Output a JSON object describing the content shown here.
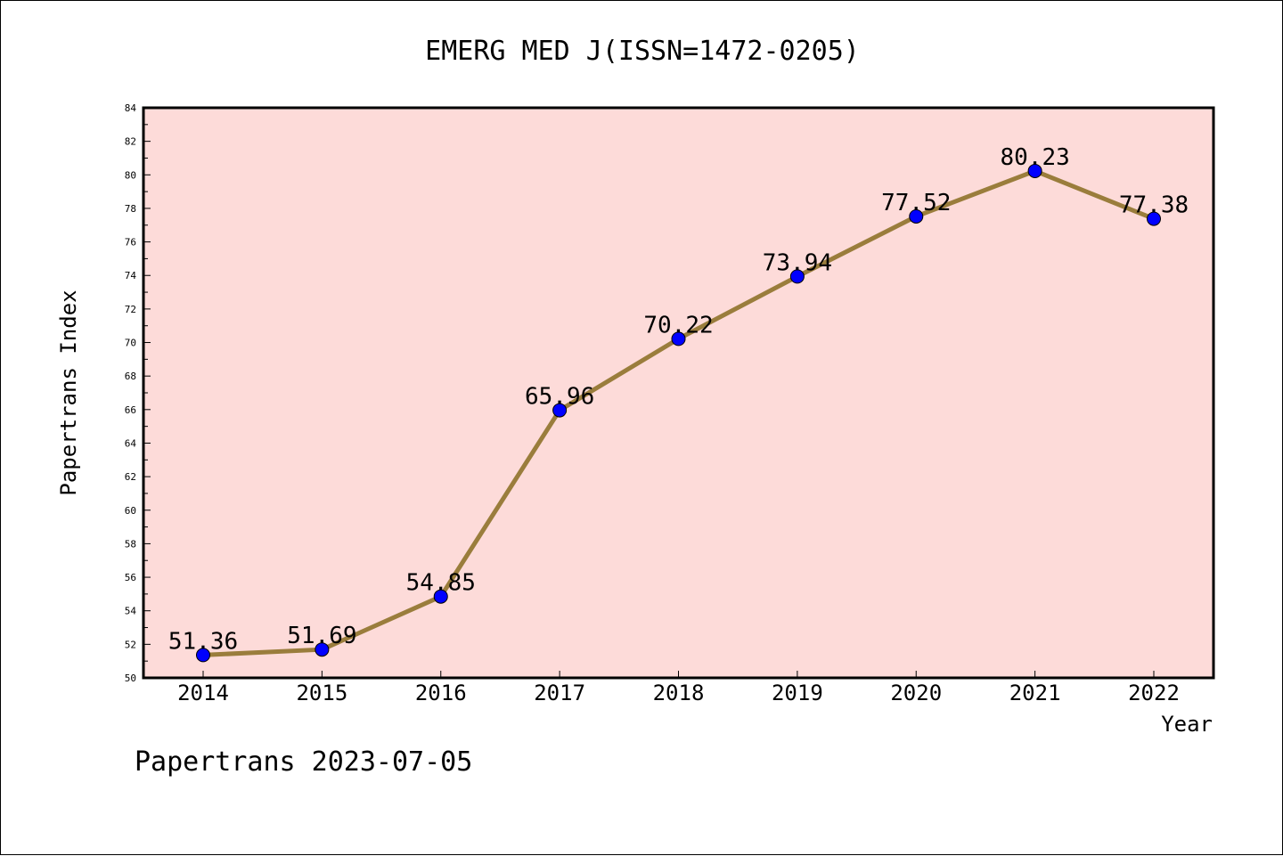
{
  "chart_data": {
    "type": "line",
    "title": "EMERG MED J(ISSN=1472-0205)",
    "xlabel": "Year",
    "ylabel": "Papertrans Index",
    "categories": [
      "2014",
      "2015",
      "2016",
      "2017",
      "2018",
      "2019",
      "2020",
      "2021",
      "2022"
    ],
    "series": [
      {
        "values": [
          51.36,
          51.69,
          54.85,
          65.96,
          70.22,
          73.94,
          77.52,
          80.23,
          77.38
        ],
        "labels": [
          "51.36",
          "51.69",
          "54.85",
          "65.96",
          "70.22",
          "73.94",
          "77.52",
          "80.23",
          "77.38"
        ]
      }
    ],
    "ylim": [
      50,
      84
    ],
    "ytick_step": 2,
    "grid": false,
    "colors": {
      "plot_background": "#fddbd9",
      "line": "#9a7d3c",
      "marker": "#0000ff"
    }
  },
  "footer": {
    "text": "Papertrans 2023-07-05"
  }
}
